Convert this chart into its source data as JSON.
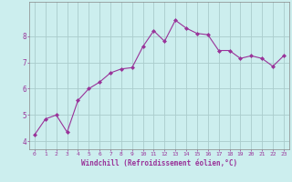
{
  "x": [
    0,
    1,
    2,
    3,
    4,
    5,
    6,
    7,
    8,
    9,
    10,
    11,
    12,
    13,
    14,
    15,
    16,
    17,
    18,
    19,
    20,
    21,
    22,
    23
  ],
  "y": [
    4.25,
    4.85,
    5.0,
    4.35,
    5.55,
    6.0,
    6.25,
    6.6,
    6.75,
    6.8,
    7.6,
    8.2,
    7.8,
    8.6,
    8.3,
    8.1,
    8.05,
    7.45,
    7.45,
    7.15,
    7.25,
    7.15,
    6.85,
    7.25
  ],
  "line_color": "#993399",
  "marker_color": "#993399",
  "bg_color": "#cceeee",
  "grid_color": "#aacccc",
  "tick_label_color": "#993399",
  "xlabel": "Windchill (Refroidissement éolien,°C)",
  "xlabel_color": "#993399",
  "xlim": [
    -0.5,
    23.5
  ],
  "ylim": [
    3.7,
    9.3
  ],
  "yticks": [
    4,
    5,
    6,
    7,
    8
  ],
  "xticks": [
    0,
    1,
    2,
    3,
    4,
    5,
    6,
    7,
    8,
    9,
    10,
    11,
    12,
    13,
    14,
    15,
    16,
    17,
    18,
    19,
    20,
    21,
    22,
    23
  ]
}
